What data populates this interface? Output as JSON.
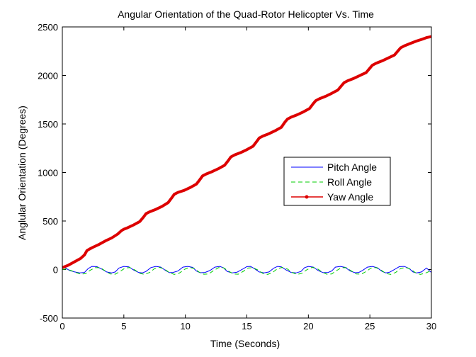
{
  "chart_data": {
    "type": "line",
    "title": "Angular Orientation of the Quad-Rotor Helicopter Vs. Time",
    "xlabel": "Time (Seconds)",
    "ylabel": "Anglular Orientation (Degrees)",
    "xlim": [
      0,
      30
    ],
    "ylim": [
      -500,
      2500
    ],
    "xticks": [
      0,
      5,
      10,
      15,
      20,
      25,
      30
    ],
    "yticks": [
      -500,
      0,
      500,
      1000,
      1500,
      2000,
      2500
    ],
    "grid": false,
    "legend": {
      "placement": "center-right"
    },
    "series": [
      {
        "name": "Pitch Angle",
        "color": "#0000ff",
        "style": "solid",
        "x": [
          0,
          0.2,
          0.6,
          1.0,
          1.4,
          1.8,
          2.1,
          2.4,
          2.8,
          3.2,
          3.6,
          4.0,
          4.3,
          4.6,
          5.0,
          5.4,
          5.8,
          6.2,
          6.5,
          6.8,
          7.2,
          7.6,
          8.0,
          8.4,
          8.7,
          9.0,
          9.4,
          9.8,
          10.2,
          10.6,
          10.9,
          11.2,
          11.6,
          12.0,
          12.4,
          12.8,
          13.1,
          13.4,
          13.8,
          14.2,
          14.6,
          15.0,
          15.3,
          15.6,
          16.0,
          16.4,
          16.8,
          17.2,
          17.5,
          17.8,
          18.2,
          18.6,
          19.0,
          19.4,
          19.7,
          20.0,
          20.4,
          20.8,
          21.2,
          21.6,
          21.9,
          22.2,
          22.6,
          23.0,
          23.4,
          23.8,
          24.1,
          24.4,
          24.8,
          25.2,
          25.6,
          26.0,
          26.3,
          26.6,
          27.0,
          27.4,
          27.8,
          28.2,
          28.5,
          28.8,
          29.2,
          29.6,
          30.0
        ],
        "y": [
          10,
          20,
          -10,
          -25,
          -35,
          -30,
          10,
          32,
          30,
          5,
          -25,
          -35,
          -25,
          15,
          32,
          28,
          -5,
          -30,
          -35,
          -20,
          20,
          32,
          25,
          -10,
          -32,
          -30,
          -15,
          25,
          32,
          22,
          -15,
          -33,
          -30,
          -10,
          25,
          32,
          18,
          -20,
          -34,
          -28,
          0,
          30,
          32,
          10,
          -25,
          -35,
          -25,
          15,
          32,
          28,
          -5,
          -30,
          -35,
          -20,
          20,
          32,
          25,
          -10,
          -32,
          -30,
          -15,
          25,
          32,
          22,
          -15,
          -33,
          -30,
          -10,
          25,
          32,
          18,
          -20,
          -34,
          -28,
          0,
          30,
          32,
          10,
          -25,
          -35,
          -25,
          15,
          -30
        ]
      },
      {
        "name": "Roll Angle",
        "color": "#00cc00",
        "style": "dashed",
        "x": [
          0,
          0.3,
          0.7,
          1.1,
          1.5,
          1.9,
          2.3,
          2.7,
          3.1,
          3.5,
          3.9,
          4.3,
          4.7,
          5.1,
          5.5,
          5.9,
          6.3,
          6.7,
          7.1,
          7.5,
          7.9,
          8.3,
          8.7,
          9.1,
          9.5,
          9.9,
          10.3,
          10.7,
          11.1,
          11.5,
          11.9,
          12.3,
          12.7,
          13.1,
          13.5,
          13.9,
          14.3,
          14.7,
          15.1,
          15.5,
          15.9,
          16.3,
          16.7,
          17.1,
          17.5,
          17.9,
          18.3,
          18.7,
          19.1,
          19.5,
          19.9,
          20.3,
          20.7,
          21.1,
          21.5,
          21.9,
          22.3,
          22.7,
          23.1,
          23.5,
          23.9,
          24.3,
          24.7,
          25.1,
          25.5,
          25.9,
          26.3,
          26.7,
          27.1,
          27.5,
          27.9,
          28.3,
          28.7,
          29.1,
          29.5,
          30.0
        ],
        "y": [
          0,
          5,
          -10,
          -30,
          -48,
          -42,
          -5,
          20,
          18,
          -15,
          -45,
          -48,
          -20,
          15,
          20,
          -5,
          -40,
          -50,
          -30,
          10,
          22,
          5,
          -32,
          -50,
          -38,
          0,
          22,
          12,
          -25,
          -48,
          -45,
          -10,
          20,
          18,
          -15,
          -45,
          -48,
          -20,
          15,
          20,
          -5,
          -40,
          -50,
          -30,
          10,
          22,
          5,
          -32,
          -50,
          -38,
          0,
          22,
          12,
          -25,
          -48,
          -45,
          -10,
          20,
          18,
          -15,
          -45,
          -48,
          -20,
          15,
          20,
          -5,
          -40,
          -50,
          -30,
          10,
          22,
          5,
          -32,
          -50,
          -38,
          -10
        ]
      },
      {
        "name": "Yaw Angle",
        "color": "#dd0000",
        "style": "solid-marker",
        "x": [
          0,
          0.5,
          1.0,
          1.5,
          1.8,
          2.0,
          2.2,
          2.5,
          3.0,
          3.5,
          4.0,
          4.5,
          4.8,
          5.0,
          5.3,
          5.8,
          6.3,
          6.6,
          6.8,
          7.1,
          7.6,
          8.1,
          8.6,
          8.9,
          9.1,
          9.4,
          9.9,
          10.4,
          10.9,
          11.2,
          11.4,
          11.7,
          12.2,
          12.7,
          13.2,
          13.5,
          13.7,
          14.0,
          14.5,
          15.0,
          15.5,
          15.8,
          16.0,
          16.3,
          16.8,
          17.3,
          17.8,
          18.1,
          18.3,
          18.6,
          19.1,
          19.6,
          20.1,
          20.4,
          20.6,
          20.9,
          21.4,
          21.9,
          22.4,
          22.7,
          22.9,
          23.2,
          23.7,
          24.2,
          24.7,
          25.0,
          25.2,
          25.5,
          26.0,
          26.5,
          27.0,
          27.3,
          27.5,
          27.8,
          28.3,
          28.8,
          29.3,
          29.6,
          30.0
        ],
        "y": [
          20,
          45,
          80,
          115,
          150,
          195,
          210,
          230,
          260,
          295,
          325,
          365,
          400,
          415,
          430,
          460,
          495,
          540,
          575,
          595,
          620,
          650,
          690,
          740,
          775,
          795,
          815,
          845,
          880,
          930,
          965,
          985,
          1010,
          1040,
          1075,
          1125,
          1160,
          1180,
          1205,
          1235,
          1270,
          1320,
          1355,
          1375,
          1400,
          1430,
          1465,
          1520,
          1550,
          1570,
          1595,
          1625,
          1660,
          1710,
          1740,
          1760,
          1785,
          1815,
          1850,
          1895,
          1925,
          1945,
          1970,
          2000,
          2030,
          2075,
          2105,
          2125,
          2150,
          2180,
          2210,
          2255,
          2285,
          2305,
          2330,
          2355,
          2375,
          2390,
          2400
        ]
      }
    ]
  }
}
